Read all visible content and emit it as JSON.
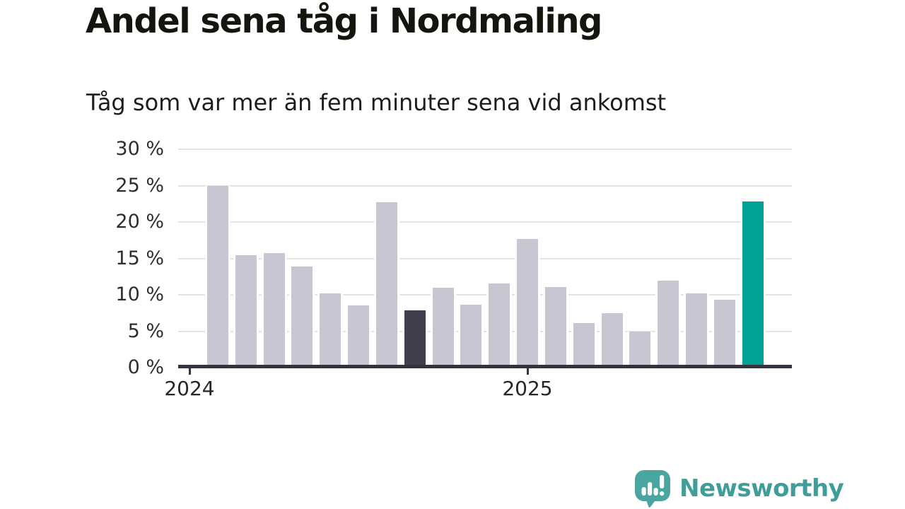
{
  "page": {
    "background": "#ffffff"
  },
  "header": {
    "title": "Andel sena tåg i Nordmaling",
    "subtitle": "Tåg som var mer än fem minuter sena vid ankomst"
  },
  "chart_data": {
    "type": "bar",
    "title": "Andel sena tåg i Nordmaling",
    "subtitle": "Tåg som var mer än fem minuter sena vid ankomst",
    "unit": "percent",
    "ylim": [
      0,
      30
    ],
    "ytick_values": [
      0,
      5,
      10,
      15,
      20,
      25,
      30
    ],
    "ytick_labels": [
      "0 %",
      "5 %",
      "10 %",
      "15 %",
      "20 %",
      "25 %",
      "30 %"
    ],
    "grid": "horizontal",
    "legend": "none",
    "x_axis": {
      "ticks": [
        {
          "month": "2024-01",
          "label": "2024"
        },
        {
          "month": "2025-01",
          "label": "2025"
        }
      ]
    },
    "series": [
      {
        "name": "Andel sena tåg",
        "points": [
          {
            "month": "2024-02",
            "value": 25.0,
            "role": "default"
          },
          {
            "month": "2024-03",
            "value": 15.4,
            "role": "default"
          },
          {
            "month": "2024-04",
            "value": 15.7,
            "role": "default"
          },
          {
            "month": "2024-05",
            "value": 13.9,
            "role": "default"
          },
          {
            "month": "2024-06",
            "value": 10.2,
            "role": "default"
          },
          {
            "month": "2024-07",
            "value": 8.5,
            "role": "default"
          },
          {
            "month": "2024-08",
            "value": 22.7,
            "role": "default"
          },
          {
            "month": "2024-09",
            "value": 7.9,
            "role": "compare"
          },
          {
            "month": "2024-10",
            "value": 11.0,
            "role": "default"
          },
          {
            "month": "2024-11",
            "value": 8.6,
            "role": "default"
          },
          {
            "month": "2024-12",
            "value": 11.6,
            "role": "default"
          },
          {
            "month": "2025-01",
            "value": 17.7,
            "role": "default"
          },
          {
            "month": "2025-02",
            "value": 11.1,
            "role": "default"
          },
          {
            "month": "2025-03",
            "value": 6.1,
            "role": "default"
          },
          {
            "month": "2025-04",
            "value": 7.5,
            "role": "default"
          },
          {
            "month": "2025-05",
            "value": 5.0,
            "role": "default"
          },
          {
            "month": "2025-06",
            "value": 11.9,
            "role": "default"
          },
          {
            "month": "2025-07",
            "value": 10.2,
            "role": "default"
          },
          {
            "month": "2025-08",
            "value": 9.3,
            "role": "default"
          },
          {
            "month": "2025-09",
            "value": 22.8,
            "role": "latest"
          }
        ]
      }
    ],
    "colors": {
      "default": "#c9c6d3",
      "compare": "#413e4e",
      "latest": "#00a295",
      "axis": "#34323c",
      "gridline": "#e4e4e4"
    }
  },
  "footer": {
    "brand": "Newsworthy",
    "logo_icon": "newsworthy-speech-bubble-chart-icon",
    "brand_color": "#3f9e97",
    "bubble_color": "#4aa6a0"
  }
}
